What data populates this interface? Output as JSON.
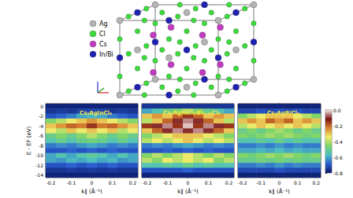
{
  "structure": {
    "legend": [
      {
        "label": "Ag",
        "color": "#b4b4b4"
      },
      {
        "label": "Cl",
        "color": "#3ddc3d"
      },
      {
        "label": "Cs",
        "color": "#c23cc2"
      },
      {
        "label": "In/Bi",
        "color": "#1f22b0"
      }
    ]
  },
  "chart_data": [
    {
      "type": "heatmap",
      "title": "Cs₂AgInCl₆",
      "xlabel": "k∥ (Å⁻¹)",
      "ylabel": "E - EF (eV)",
      "x": [
        -0.2,
        -0.15,
        -0.1,
        -0.05,
        0,
        0.05,
        0.1,
        0.15,
        0.2
      ],
      "y": [
        0,
        -1,
        -2,
        -3,
        -4,
        -5,
        -6,
        -7,
        -8,
        -9,
        -10,
        -11,
        -12,
        -13,
        -14
      ],
      "xlim": [
        -0.225,
        0.225
      ],
      "ylim": [
        -14.5,
        0.5
      ],
      "xticks": [
        -0.2,
        -0.1,
        0,
        0.1,
        0.2
      ],
      "yticks": [
        -14,
        -12,
        -10,
        -8,
        -6,
        -4,
        -2,
        0
      ],
      "values": [
        [
          -0.78,
          -0.78,
          -0.78,
          -0.78,
          -0.78,
          -0.78,
          -0.78,
          -0.78,
          -0.78
        ],
        [
          -0.75,
          -0.74,
          -0.75,
          -0.73,
          -0.72,
          -0.73,
          -0.75,
          -0.74,
          -0.75
        ],
        [
          -0.7,
          -0.68,
          -0.65,
          -0.6,
          -0.58,
          -0.6,
          -0.65,
          -0.68,
          -0.7
        ],
        [
          -0.45,
          -0.4,
          -0.35,
          -0.3,
          -0.25,
          -0.3,
          -0.35,
          -0.4,
          -0.45
        ],
        [
          -0.3,
          -0.25,
          -0.2,
          -0.22,
          -0.15,
          -0.22,
          -0.2,
          -0.25,
          -0.3
        ],
        [
          -0.35,
          -0.4,
          -0.3,
          -0.35,
          -0.3,
          -0.35,
          -0.3,
          -0.4,
          -0.35
        ],
        [
          -0.5,
          -0.45,
          -0.5,
          -0.45,
          -0.4,
          -0.45,
          -0.5,
          -0.45,
          -0.5
        ],
        [
          -0.55,
          -0.5,
          -0.55,
          -0.5,
          -0.48,
          -0.5,
          -0.55,
          -0.5,
          -0.55
        ],
        [
          -0.65,
          -0.63,
          -0.65,
          -0.62,
          -0.6,
          -0.62,
          -0.65,
          -0.63,
          -0.65
        ],
        [
          -0.7,
          -0.7,
          -0.68,
          -0.7,
          -0.68,
          -0.7,
          -0.68,
          -0.7,
          -0.7
        ],
        [
          -0.6,
          -0.55,
          -0.6,
          -0.55,
          -0.52,
          -0.55,
          -0.6,
          -0.55,
          -0.6
        ],
        [
          -0.6,
          -0.62,
          -0.58,
          -0.6,
          -0.57,
          -0.6,
          -0.58,
          -0.62,
          -0.6
        ],
        [
          -0.7,
          -0.7,
          -0.68,
          -0.7,
          -0.68,
          -0.7,
          -0.68,
          -0.7,
          -0.7
        ],
        [
          -0.75,
          -0.75,
          -0.74,
          -0.75,
          -0.74,
          -0.75,
          -0.74,
          -0.75,
          -0.75
        ],
        [
          -0.78,
          -0.78,
          -0.78,
          -0.78,
          -0.78,
          -0.78,
          -0.78,
          -0.78,
          -0.78
        ]
      ]
    },
    {
      "type": "heatmap",
      "title": "Cs₂AgIn₀.₉₀Bi₀.₁₀Cl₆",
      "xlabel": "k∥ (Å⁻¹)",
      "tick_labels": "x",
      "x": [
        -0.2,
        -0.15,
        -0.1,
        -0.05,
        0,
        0.05,
        0.1,
        0.15,
        0.2
      ],
      "y": [
        0,
        -1,
        -2,
        -3,
        -4,
        -5,
        -6,
        -7,
        -8,
        -9,
        -10,
        -11,
        -12,
        -13,
        -14
      ],
      "xlim": [
        -0.225,
        0.225
      ],
      "ylim": [
        -14.5,
        0.5
      ],
      "xticks": [
        -0.2,
        -0.1,
        0,
        0.1,
        0.2
      ],
      "yticks": [
        -14,
        -12,
        -10,
        -8,
        -6,
        -4,
        -2,
        0
      ],
      "values": [
        [
          -0.75,
          -0.75,
          -0.75,
          -0.75,
          -0.75,
          -0.75,
          -0.75,
          -0.75,
          -0.75
        ],
        [
          -0.6,
          -0.55,
          -0.5,
          -0.45,
          -0.4,
          -0.45,
          -0.5,
          -0.55,
          -0.6
        ],
        [
          -0.3,
          -0.25,
          -0.3,
          -0.2,
          -0.15,
          -0.2,
          -0.3,
          -0.25,
          -0.3
        ],
        [
          -0.4,
          -0.3,
          -0.2,
          -0.1,
          -0.05,
          -0.1,
          -0.2,
          -0.3,
          -0.4
        ],
        [
          -0.15,
          -0.1,
          -0.05,
          -0.15,
          -0.02,
          -0.15,
          -0.05,
          -0.1,
          -0.15
        ],
        [
          -0.3,
          -0.2,
          -0.1,
          -0.05,
          -0.1,
          -0.05,
          -0.1,
          -0.2,
          -0.3
        ],
        [
          -0.45,
          -0.4,
          -0.35,
          -0.3,
          -0.3,
          -0.3,
          -0.35,
          -0.4,
          -0.45
        ],
        [
          -0.4,
          -0.35,
          -0.4,
          -0.35,
          -0.3,
          -0.35,
          -0.4,
          -0.35,
          -0.4
        ],
        [
          -0.65,
          -0.63,
          -0.65,
          -0.62,
          -0.6,
          -0.62,
          -0.65,
          -0.63,
          -0.65
        ],
        [
          -0.7,
          -0.7,
          -0.68,
          -0.7,
          -0.68,
          -0.7,
          -0.68,
          -0.7,
          -0.7
        ],
        [
          -0.45,
          -0.4,
          -0.45,
          -0.4,
          -0.35,
          -0.4,
          -0.45,
          -0.4,
          -0.45
        ],
        [
          -0.4,
          -0.45,
          -0.35,
          -0.4,
          -0.35,
          -0.4,
          -0.35,
          -0.45,
          -0.4
        ],
        [
          -0.55,
          -0.55,
          -0.52,
          -0.55,
          -0.5,
          -0.55,
          -0.52,
          -0.55,
          -0.55
        ],
        [
          -0.7,
          -0.7,
          -0.7,
          -0.7,
          -0.68,
          -0.7,
          -0.7,
          -0.7,
          -0.7
        ],
        [
          -0.78,
          -0.78,
          -0.78,
          -0.78,
          -0.78,
          -0.78,
          -0.78,
          -0.78,
          -0.78
        ]
      ]
    },
    {
      "type": "heatmap",
      "title": "Cs₂AgBiCl₆",
      "xlabel": "k∥ (Å⁻¹)",
      "tick_labels": "x",
      "x": [
        -0.2,
        -0.15,
        -0.1,
        -0.05,
        0,
        0.05,
        0.1,
        0.15,
        0.2
      ],
      "y": [
        0,
        -1,
        -2,
        -3,
        -4,
        -5,
        -6,
        -7,
        -8,
        -9,
        -10,
        -11,
        -12,
        -13,
        -14
      ],
      "xlim": [
        -0.225,
        0.225
      ],
      "ylim": [
        -14.5,
        0.5
      ],
      "xticks": [
        -0.2,
        -0.1,
        0,
        0.1,
        0.2
      ],
      "yticks": [
        -14,
        -12,
        -10,
        -8,
        -6,
        -4,
        -2,
        0
      ],
      "values": [
        [
          -0.78,
          -0.78,
          -0.78,
          -0.78,
          -0.78,
          -0.78,
          -0.78,
          -0.78,
          -0.78
        ],
        [
          -0.72,
          -0.72,
          -0.7,
          -0.72,
          -0.7,
          -0.72,
          -0.7,
          -0.72,
          -0.72
        ],
        [
          -0.45,
          -0.4,
          -0.35,
          -0.3,
          -0.3,
          -0.3,
          -0.35,
          -0.4,
          -0.45
        ],
        [
          -0.3,
          -0.25,
          -0.3,
          -0.2,
          -0.25,
          -0.2,
          -0.3,
          -0.25,
          -0.3
        ],
        [
          -0.4,
          -0.35,
          -0.3,
          -0.35,
          -0.3,
          -0.35,
          -0.3,
          -0.35,
          -0.4
        ],
        [
          -0.5,
          -0.45,
          -0.5,
          -0.45,
          -0.42,
          -0.45,
          -0.5,
          -0.45,
          -0.5
        ],
        [
          -0.45,
          -0.48,
          -0.45,
          -0.42,
          -0.45,
          -0.42,
          -0.45,
          -0.48,
          -0.45
        ],
        [
          -0.55,
          -0.55,
          -0.52,
          -0.55,
          -0.5,
          -0.55,
          -0.52,
          -0.55,
          -0.55
        ],
        [
          -0.65,
          -0.65,
          -0.63,
          -0.65,
          -0.62,
          -0.65,
          -0.63,
          -0.65,
          -0.65
        ],
        [
          -0.6,
          -0.6,
          -0.58,
          -0.6,
          -0.57,
          -0.6,
          -0.58,
          -0.6,
          -0.6
        ],
        [
          -0.45,
          -0.48,
          -0.45,
          -0.42,
          -0.45,
          -0.42,
          -0.45,
          -0.48,
          -0.45
        ],
        [
          -0.5,
          -0.5,
          -0.48,
          -0.5,
          -0.47,
          -0.5,
          -0.48,
          -0.5,
          -0.5
        ],
        [
          -0.65,
          -0.65,
          -0.63,
          -0.65,
          -0.62,
          -0.65,
          -0.63,
          -0.65,
          -0.65
        ],
        [
          -0.72,
          -0.72,
          -0.72,
          -0.72,
          -0.7,
          -0.72,
          -0.72,
          -0.72,
          -0.72
        ],
        [
          -0.78,
          -0.78,
          -0.78,
          -0.78,
          -0.78,
          -0.78,
          -0.78,
          -0.78,
          -0.78
        ]
      ],
      "colorbar": {
        "range": [
          -0.8,
          0
        ],
        "ticks": [
          -0.8,
          -0.6,
          -0.4,
          -0.2,
          {
            "value": 0,
            "label": "0.0"
          }
        ],
        "colors": [
          "#0b1a66",
          "#2a5bd0",
          "#4cc0c0",
          "#7bd36a",
          "#f2ec6a",
          "#d9822f",
          "#7a1212",
          "#f4e6e6"
        ]
      }
    }
  ]
}
